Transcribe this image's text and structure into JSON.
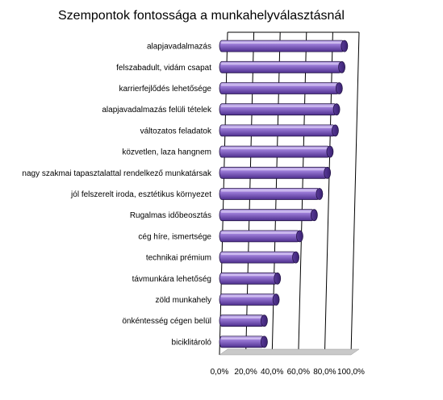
{
  "chart_data": {
    "type": "bar",
    "orientation": "horizontal",
    "title": "Szempontok fontossága a munkahelyválasztásnál",
    "xlabel": "",
    "ylabel": "",
    "xlim": [
      0,
      100
    ],
    "tick_labels": [
      "0,0%",
      "20,0%",
      "40,0%",
      "60,0%",
      "80,0%",
      "100,0%"
    ],
    "categories": [
      "alapjavadalmazás",
      "felszabadult, vidám csapat",
      "karrierfejlődés lehetősége",
      "alapjavadalmazás felüli tételek",
      "változatos feladatok",
      "közvetlen, laza hangnem",
      "nagy szakmai tapasztalattal rendelkező munkatársak",
      "jól felszerelt iroda, esztétikus környezet",
      "Rugalmas időbeosztás",
      "cég híre, ismertsége",
      "technikai prémium",
      "távmunkára lehetőség",
      "zöld munkahely",
      "önkéntesség cégen belül",
      "biciklitároló"
    ],
    "values": [
      95,
      93,
      91,
      89,
      88,
      84,
      82,
      76,
      72,
      61,
      58,
      44,
      43,
      34,
      34
    ],
    "grid": true,
    "legend": "none",
    "colors": {
      "bar_light": "#b39be0",
      "bar_mid": "#8a67c9",
      "bar_dark": "#4e2f8e",
      "bar_edge": "#241447",
      "grid": "#000000",
      "floor": "#c9c9c9"
    }
  }
}
